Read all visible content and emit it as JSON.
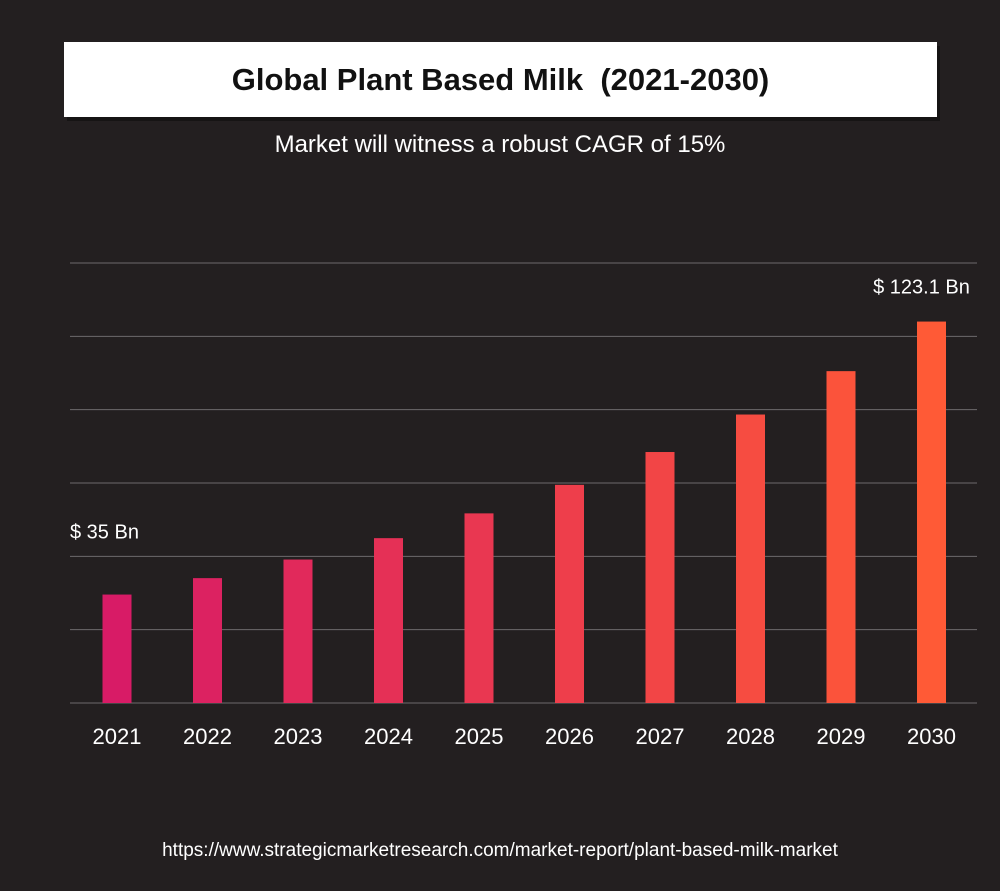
{
  "header": {
    "title": "Global Plant Based Milk  (2021-2030)",
    "subtitle": "Market will witness a robust CAGR of 15%"
  },
  "footer": {
    "url": "https://www.strategicmarketresearch.com/market-report/plant-based-milk-market"
  },
  "colors": {
    "background": "#231f20",
    "grid": "#6d6a6b",
    "bar_start": "#d81b66",
    "bar_end": "#ff5a36"
  },
  "chart_data": {
    "type": "bar",
    "title": "Global Plant Based Milk  (2021-2030)",
    "subtitle": "Market will witness a robust CAGR of 15%",
    "xlabel": "",
    "ylabel": "",
    "unit": "$ Bn",
    "categories": [
      "2021",
      "2022",
      "2023",
      "2024",
      "2025",
      "2026",
      "2027",
      "2028",
      "2029",
      "2030"
    ],
    "values": [
      35,
      40.3,
      46.3,
      53.2,
      61.2,
      70.4,
      81.0,
      93.1,
      107.1,
      123.1
    ],
    "data_labels": [
      {
        "index": 0,
        "text": "$ 35 Bn"
      },
      {
        "index": 9,
        "text": "$ 123.1 Bn"
      }
    ],
    "ylim": [
      0,
      142
    ],
    "grid": true,
    "legend": "none"
  }
}
